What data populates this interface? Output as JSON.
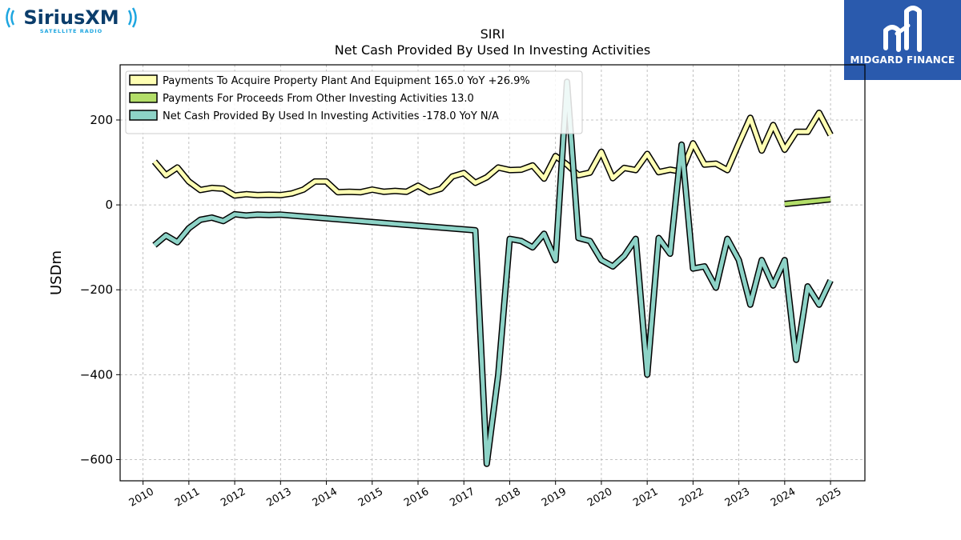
{
  "brand_left": {
    "name": "SiriusXM",
    "tagline": "SATELLITE RADIO"
  },
  "brand_right": {
    "name": "MIDGARD FINANCE"
  },
  "chart_data": {
    "type": "line",
    "title": "SIRI",
    "subtitle": "Net Cash Provided By Used In Investing Activities",
    "ylabel": "USDm",
    "xlabel": "",
    "xlim": [
      2009.5,
      2025.75
    ],
    "ylim": [
      -650,
      330
    ],
    "xticks": [
      2010,
      2011,
      2012,
      2013,
      2014,
      2015,
      2016,
      2017,
      2018,
      2019,
      2020,
      2021,
      2022,
      2023,
      2024,
      2025
    ],
    "xtick_labels": [
      "2010",
      "2011",
      "2012",
      "2013",
      "2014",
      "2015",
      "2016",
      "2017",
      "2018",
      "2019",
      "2020",
      "2021",
      "2022",
      "2023",
      "2024",
      "2025"
    ],
    "yticks": [
      -600,
      -400,
      -200,
      0,
      200
    ],
    "ytick_labels": [
      "−600",
      "−400",
      "−200",
      "0",
      "200"
    ],
    "grid": true,
    "legend_position": "top-left",
    "series": [
      {
        "name": "Payments To Acquire Property Plant And Equipment  165.0 YoY +26.9%",
        "color": "#ffffb3",
        "points": [
          [
            2010.25,
            102
          ],
          [
            2010.5,
            70
          ],
          [
            2010.75,
            88
          ],
          [
            2011.0,
            55
          ],
          [
            2011.25,
            35
          ],
          [
            2011.5,
            40
          ],
          [
            2011.75,
            38
          ],
          [
            2012.0,
            22
          ],
          [
            2012.25,
            25
          ],
          [
            2012.5,
            23
          ],
          [
            2012.75,
            24
          ],
          [
            2013.0,
            23
          ],
          [
            2013.25,
            27
          ],
          [
            2013.5,
            36
          ],
          [
            2013.75,
            55
          ],
          [
            2014.0,
            55
          ],
          [
            2014.25,
            30
          ],
          [
            2014.5,
            31
          ],
          [
            2014.75,
            30
          ],
          [
            2015.0,
            36
          ],
          [
            2015.25,
            31
          ],
          [
            2015.5,
            33
          ],
          [
            2015.75,
            31
          ],
          [
            2016.0,
            45
          ],
          [
            2016.25,
            30
          ],
          [
            2016.5,
            38
          ],
          [
            2016.75,
            67
          ],
          [
            2017.0,
            75
          ],
          [
            2017.25,
            52
          ],
          [
            2017.5,
            65
          ],
          [
            2017.75,
            88
          ],
          [
            2018.0,
            82
          ],
          [
            2018.25,
            83
          ],
          [
            2018.5,
            93
          ],
          [
            2018.75,
            62
          ],
          [
            2019.0,
            115
          ],
          [
            2019.25,
            95
          ],
          [
            2019.5,
            70
          ],
          [
            2019.75,
            76
          ],
          [
            2020.0,
            125
          ],
          [
            2020.25,
            63
          ],
          [
            2020.5,
            87
          ],
          [
            2020.75,
            82
          ],
          [
            2021.0,
            120
          ],
          [
            2021.25,
            77
          ],
          [
            2021.5,
            83
          ],
          [
            2021.75,
            78
          ],
          [
            2022.0,
            145
          ],
          [
            2022.25,
            95
          ],
          [
            2022.5,
            97
          ],
          [
            2022.75,
            82
          ],
          [
            2023.0,
            145
          ],
          [
            2023.25,
            205
          ],
          [
            2023.5,
            128
          ],
          [
            2023.75,
            188
          ],
          [
            2024.0,
            130
          ],
          [
            2024.25,
            172
          ],
          [
            2024.5,
            172
          ],
          [
            2024.75,
            217
          ],
          [
            2025.0,
            165
          ]
        ]
      },
      {
        "name": "Payments For Proceeds From Other Investing Activities  13.0",
        "color": "#b3de69",
        "points": [
          [
            2024.0,
            2
          ],
          [
            2025.0,
            13
          ]
        ]
      },
      {
        "name": "Net Cash Provided By Used In Investing Activities  -178.0 YoY N/A",
        "color": "#8dd3c7",
        "points": [
          [
            2010.25,
            -95
          ],
          [
            2010.5,
            -72
          ],
          [
            2010.75,
            -88
          ],
          [
            2011.0,
            -55
          ],
          [
            2011.25,
            -35
          ],
          [
            2011.5,
            -30
          ],
          [
            2011.75,
            -38
          ],
          [
            2012.0,
            -22
          ],
          [
            2012.25,
            -25
          ],
          [
            2012.5,
            -23
          ],
          [
            2012.75,
            -24
          ],
          [
            2013.0,
            -23
          ],
          [
            2017.25,
            -60
          ],
          [
            2017.5,
            -610
          ],
          [
            2017.75,
            -400
          ],
          [
            2018.0,
            -80
          ],
          [
            2018.25,
            -85
          ],
          [
            2018.5,
            -100
          ],
          [
            2018.75,
            -68
          ],
          [
            2019.0,
            -130
          ],
          [
            2019.25,
            290
          ],
          [
            2019.5,
            -78
          ],
          [
            2019.75,
            -85
          ],
          [
            2020.0,
            -130
          ],
          [
            2020.25,
            -145
          ],
          [
            2020.5,
            -120
          ],
          [
            2020.75,
            -80
          ],
          [
            2021.0,
            -400
          ],
          [
            2021.25,
            -78
          ],
          [
            2021.5,
            -115
          ],
          [
            2021.75,
            142
          ],
          [
            2022.0,
            -150
          ],
          [
            2022.25,
            -145
          ],
          [
            2022.5,
            -195
          ],
          [
            2022.75,
            -80
          ],
          [
            2023.0,
            -130
          ],
          [
            2023.25,
            -235
          ],
          [
            2023.5,
            -130
          ],
          [
            2023.75,
            -190
          ],
          [
            2024.0,
            -130
          ],
          [
            2024.25,
            -365
          ],
          [
            2024.5,
            -192
          ],
          [
            2024.75,
            -235
          ],
          [
            2025.0,
            -178
          ]
        ]
      }
    ]
  }
}
